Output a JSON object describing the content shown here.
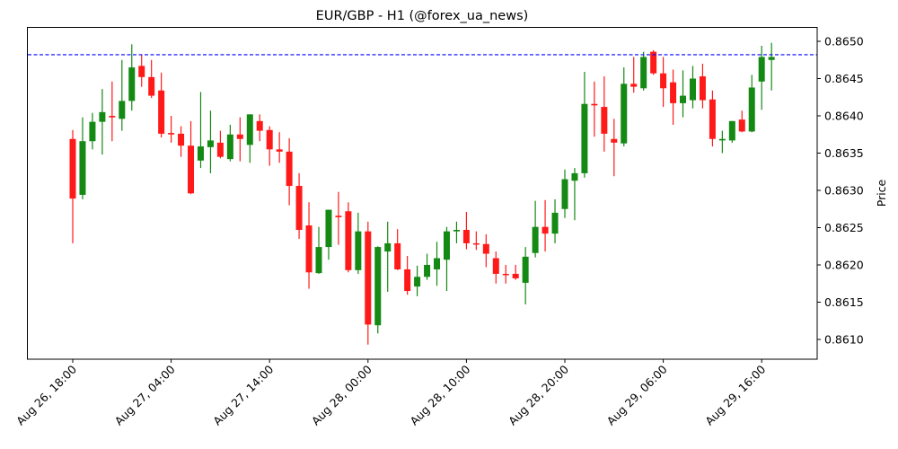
{
  "chart_data": {
    "type": "candlestick",
    "title": "EUR/GBP - H1 (@forex_ua_news)",
    "xlabel": "",
    "ylabel": "Price",
    "y_axis_position": "right",
    "ylim": [
      0.86077,
      0.86519
    ],
    "yticks": [
      "0.8610",
      "0.8615",
      "0.8620",
      "0.8625",
      "0.8630",
      "0.8635",
      "0.8640",
      "0.8645",
      "0.8650"
    ],
    "xticks": [
      {
        "label": "Aug 26, 18:00",
        "index": 0
      },
      {
        "label": "Aug 27, 04:00",
        "index": 10
      },
      {
        "label": "Aug 27, 14:00",
        "index": 20
      },
      {
        "label": "Aug 28, 00:00",
        "index": 30
      },
      {
        "label": "Aug 28, 10:00",
        "index": 40
      },
      {
        "label": "Aug 28, 20:00",
        "index": 50
      },
      {
        "label": "Aug 29, 06:00",
        "index": 60
      },
      {
        "label": "Aug 29, 16:00",
        "index": 70
      }
    ],
    "grid": false,
    "reference_line": {
      "price": 0.86482,
      "style": "dashed",
      "color": "#0000ff"
    },
    "colors": {
      "up": "#148a14",
      "down": "#ff1a1a"
    },
    "candles": [
      {
        "o": 0.86369,
        "h": 0.86381,
        "l": 0.86229,
        "c": 0.86289
      },
      {
        "o": 0.86294,
        "h": 0.86398,
        "l": 0.86288,
        "c": 0.86366
      },
      {
        "o": 0.86366,
        "h": 0.86404,
        "l": 0.86355,
        "c": 0.86392
      },
      {
        "o": 0.86392,
        "h": 0.86436,
        "l": 0.86348,
        "c": 0.86405
      },
      {
        "o": 0.864,
        "h": 0.86446,
        "l": 0.86366,
        "c": 0.86398
      },
      {
        "o": 0.86396,
        "h": 0.86475,
        "l": 0.8638,
        "c": 0.8642
      },
      {
        "o": 0.8642,
        "h": 0.86496,
        "l": 0.86407,
        "c": 0.86465
      },
      {
        "o": 0.86467,
        "h": 0.86482,
        "l": 0.86439,
        "c": 0.86452
      },
      {
        "o": 0.86452,
        "h": 0.86475,
        "l": 0.86424,
        "c": 0.86427
      },
      {
        "o": 0.86434,
        "h": 0.86458,
        "l": 0.86371,
        "c": 0.86376
      },
      {
        "o": 0.86377,
        "h": 0.864,
        "l": 0.86364,
        "c": 0.86375
      },
      {
        "o": 0.86376,
        "h": 0.86386,
        "l": 0.86345,
        "c": 0.8636
      },
      {
        "o": 0.8636,
        "h": 0.86393,
        "l": 0.86295,
        "c": 0.86296
      },
      {
        "o": 0.8634,
        "h": 0.86432,
        "l": 0.8633,
        "c": 0.86359
      },
      {
        "o": 0.86358,
        "h": 0.86407,
        "l": 0.86323,
        "c": 0.86367
      },
      {
        "o": 0.86364,
        "h": 0.8638,
        "l": 0.86343,
        "c": 0.86345
      },
      {
        "o": 0.86342,
        "h": 0.86388,
        "l": 0.86339,
        "c": 0.86375
      },
      {
        "o": 0.86375,
        "h": 0.86398,
        "l": 0.86339,
        "c": 0.86369
      },
      {
        "o": 0.86361,
        "h": 0.86402,
        "l": 0.86337,
        "c": 0.86402
      },
      {
        "o": 0.86393,
        "h": 0.86402,
        "l": 0.86366,
        "c": 0.8638
      },
      {
        "o": 0.86381,
        "h": 0.86386,
        "l": 0.86333,
        "c": 0.86355
      },
      {
        "o": 0.86355,
        "h": 0.86378,
        "l": 0.86337,
        "c": 0.86352
      },
      {
        "o": 0.86352,
        "h": 0.8637,
        "l": 0.8628,
        "c": 0.86306
      },
      {
        "o": 0.86306,
        "h": 0.86323,
        "l": 0.86235,
        "c": 0.86247
      },
      {
        "o": 0.86253,
        "h": 0.86284,
        "l": 0.86168,
        "c": 0.8619
      },
      {
        "o": 0.86189,
        "h": 0.86251,
        "l": 0.86188,
        "c": 0.86224
      },
      {
        "o": 0.86224,
        "h": 0.86274,
        "l": 0.86207,
        "c": 0.86274
      },
      {
        "o": 0.86266,
        "h": 0.86298,
        "l": 0.86227,
        "c": 0.86264
      },
      {
        "o": 0.86272,
        "h": 0.86284,
        "l": 0.8619,
        "c": 0.86193
      },
      {
        "o": 0.86193,
        "h": 0.8627,
        "l": 0.86188,
        "c": 0.86245
      },
      {
        "o": 0.86245,
        "h": 0.86258,
        "l": 0.86093,
        "c": 0.8612
      },
      {
        "o": 0.86119,
        "h": 0.86225,
        "l": 0.86108,
        "c": 0.86224
      },
      {
        "o": 0.86218,
        "h": 0.86258,
        "l": 0.86164,
        "c": 0.86229
      },
      {
        "o": 0.86229,
        "h": 0.86248,
        "l": 0.86193,
        "c": 0.86194
      },
      {
        "o": 0.86194,
        "h": 0.86212,
        "l": 0.8616,
        "c": 0.86165
      },
      {
        "o": 0.86171,
        "h": 0.86199,
        "l": 0.86158,
        "c": 0.86184
      },
      {
        "o": 0.86184,
        "h": 0.86215,
        "l": 0.8618,
        "c": 0.862
      },
      {
        "o": 0.86194,
        "h": 0.86231,
        "l": 0.86172,
        "c": 0.86209
      },
      {
        "o": 0.86207,
        "h": 0.86251,
        "l": 0.86165,
        "c": 0.86245
      },
      {
        "o": 0.86245,
        "h": 0.86258,
        "l": 0.86229,
        "c": 0.86247
      },
      {
        "o": 0.86247,
        "h": 0.86271,
        "l": 0.86221,
        "c": 0.86229
      },
      {
        "o": 0.86229,
        "h": 0.86245,
        "l": 0.8622,
        "c": 0.86228
      },
      {
        "o": 0.86228,
        "h": 0.86241,
        "l": 0.86197,
        "c": 0.86215
      },
      {
        "o": 0.86209,
        "h": 0.86218,
        "l": 0.86175,
        "c": 0.86188
      },
      {
        "o": 0.86188,
        "h": 0.862,
        "l": 0.86175,
        "c": 0.86187
      },
      {
        "o": 0.86188,
        "h": 0.862,
        "l": 0.8618,
        "c": 0.86182
      },
      {
        "o": 0.86176,
        "h": 0.86224,
        "l": 0.86147,
        "c": 0.86211
      },
      {
        "o": 0.86216,
        "h": 0.86286,
        "l": 0.8621,
        "c": 0.86251
      },
      {
        "o": 0.86251,
        "h": 0.86287,
        "l": 0.86218,
        "c": 0.86242
      },
      {
        "o": 0.86242,
        "h": 0.86288,
        "l": 0.86229,
        "c": 0.8627
      },
      {
        "o": 0.86275,
        "h": 0.86328,
        "l": 0.86263,
        "c": 0.86315
      },
      {
        "o": 0.86313,
        "h": 0.8633,
        "l": 0.8626,
        "c": 0.86323
      },
      {
        "o": 0.86323,
        "h": 0.86459,
        "l": 0.86317,
        "c": 0.86416
      },
      {
        "o": 0.86416,
        "h": 0.86446,
        "l": 0.86372,
        "c": 0.86414
      },
      {
        "o": 0.86412,
        "h": 0.86453,
        "l": 0.86352,
        "c": 0.86376
      },
      {
        "o": 0.86369,
        "h": 0.86396,
        "l": 0.86319,
        "c": 0.86364
      },
      {
        "o": 0.86363,
        "h": 0.86465,
        "l": 0.86359,
        "c": 0.86443
      },
      {
        "o": 0.86443,
        "h": 0.86479,
        "l": 0.86431,
        "c": 0.86439
      },
      {
        "o": 0.86437,
        "h": 0.86486,
        "l": 0.86434,
        "c": 0.86479
      },
      {
        "o": 0.86486,
        "h": 0.86488,
        "l": 0.86455,
        "c": 0.86457
      },
      {
        "o": 0.86457,
        "h": 0.86479,
        "l": 0.86412,
        "c": 0.86437
      },
      {
        "o": 0.86445,
        "h": 0.86462,
        "l": 0.86388,
        "c": 0.86417
      },
      {
        "o": 0.86417,
        "h": 0.86461,
        "l": 0.86398,
        "c": 0.86427
      },
      {
        "o": 0.86421,
        "h": 0.86467,
        "l": 0.8641,
        "c": 0.8645
      },
      {
        "o": 0.86453,
        "h": 0.8647,
        "l": 0.8641,
        "c": 0.86421
      },
      {
        "o": 0.86422,
        "h": 0.86434,
        "l": 0.86359,
        "c": 0.86369
      },
      {
        "o": 0.86367,
        "h": 0.8638,
        "l": 0.8635,
        "c": 0.86369
      },
      {
        "o": 0.86367,
        "h": 0.86393,
        "l": 0.86364,
        "c": 0.86393
      },
      {
        "o": 0.86395,
        "h": 0.86407,
        "l": 0.86378,
        "c": 0.86379
      },
      {
        "o": 0.86379,
        "h": 0.86455,
        "l": 0.86378,
        "c": 0.86438
      },
      {
        "o": 0.86446,
        "h": 0.86494,
        "l": 0.86408,
        "c": 0.86479
      },
      {
        "o": 0.86475,
        "h": 0.86498,
        "l": 0.86434,
        "c": 0.86479
      }
    ]
  }
}
